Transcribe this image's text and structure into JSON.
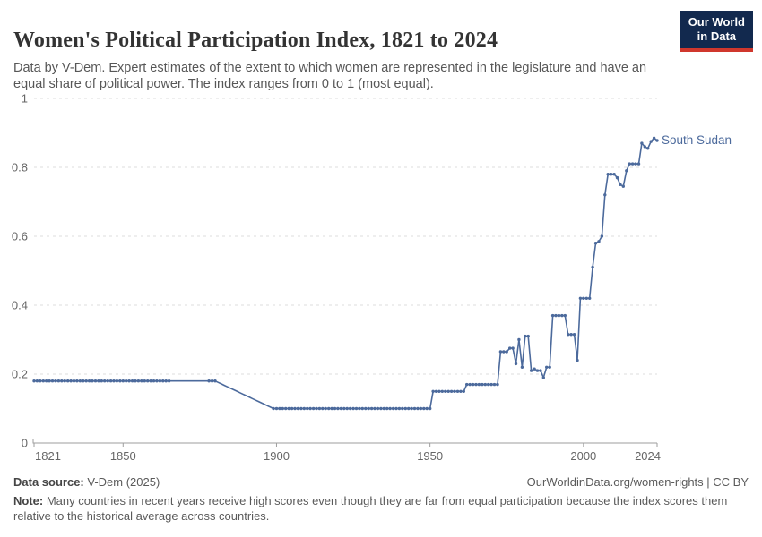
{
  "header": {
    "title": "Women's Political Participation Index, 1821 to 2024",
    "subtitle": "Data by V-Dem. Expert estimates of the extent to which women are represented in the legislature and have an equal share of political power. The index ranges from 0 to 1 (most equal)."
  },
  "logo": {
    "line1": "Our World",
    "line2": "in Data",
    "bg_color": "#12294e",
    "bar_color": "#d0372d"
  },
  "footer": {
    "source_label": "Data source:",
    "source_value": " V-Dem (2025)",
    "link": "OurWorldinData.org/women-rights | CC BY",
    "note_label": "Note:",
    "note_value": " Many countries in recent years receive high scores even though they are far from equal participation because the index scores them relative to the historical average across countries."
  },
  "chart_data": {
    "type": "line",
    "title": "Women's Political Participation Index, 1821 to 2024",
    "entity": "South Sudan",
    "series_label": "South Sudan",
    "xlim": [
      1821,
      2024
    ],
    "ylim": [
      0,
      1
    ],
    "xticks": [
      1821,
      1850,
      1900,
      1950,
      2000,
      2024
    ],
    "yticks": [
      0,
      0.2,
      0.4,
      0.6,
      0.8,
      1
    ],
    "ytick_labels": [
      "0",
      "0.2",
      "0.4",
      "0.6",
      "0.8",
      "1"
    ],
    "grid": "horizontal-dashed",
    "legend_position": "end-of-line-label",
    "colors": {
      "line": "#4c6a9c",
      "grid": "#dcdcdc",
      "axis": "#9e9e9e",
      "tick_label": "#666666"
    },
    "runs_comment": "constant-value year runs: [startYear, endYear, value, hasMarkers]; null value = linear ramp between neighbouring runs (no markers)",
    "runs": [
      [
        1821,
        1865,
        0.18,
        true
      ],
      [
        1866,
        1877,
        0.18,
        false
      ],
      [
        1878,
        1880,
        0.18,
        true
      ],
      [
        1881,
        1898,
        null,
        false
      ],
      [
        1899,
        1950,
        0.1,
        true
      ],
      [
        1951,
        1961,
        0.15,
        true
      ],
      [
        1962,
        1972,
        0.17,
        true
      ]
    ],
    "points": [
      [
        1973,
        0.265
      ],
      [
        1974,
        0.265
      ],
      [
        1975,
        0.265
      ],
      [
        1976,
        0.275
      ],
      [
        1977,
        0.275
      ],
      [
        1978,
        0.23
      ],
      [
        1979,
        0.3
      ],
      [
        1980,
        0.22
      ],
      [
        1981,
        0.31
      ],
      [
        1982,
        0.31
      ],
      [
        1983,
        0.21
      ],
      [
        1984,
        0.215
      ],
      [
        1985,
        0.21
      ],
      [
        1986,
        0.21
      ],
      [
        1987,
        0.19
      ],
      [
        1988,
        0.22
      ],
      [
        1989,
        0.22
      ],
      [
        1990,
        0.37
      ],
      [
        1991,
        0.37
      ],
      [
        1992,
        0.37
      ],
      [
        1993,
        0.37
      ],
      [
        1994,
        0.37
      ],
      [
        1995,
        0.315
      ],
      [
        1996,
        0.315
      ],
      [
        1997,
        0.315
      ],
      [
        1998,
        0.24
      ],
      [
        1999,
        0.42
      ],
      [
        2000,
        0.42
      ],
      [
        2001,
        0.42
      ],
      [
        2002,
        0.42
      ],
      [
        2003,
        0.51
      ],
      [
        2004,
        0.58
      ],
      [
        2005,
        0.585
      ],
      [
        2006,
        0.6
      ],
      [
        2007,
        0.72
      ],
      [
        2008,
        0.78
      ],
      [
        2009,
        0.78
      ],
      [
        2010,
        0.78
      ],
      [
        2011,
        0.77
      ],
      [
        2012,
        0.75
      ],
      [
        2013,
        0.745
      ],
      [
        2014,
        0.79
      ],
      [
        2015,
        0.81
      ],
      [
        2016,
        0.81
      ],
      [
        2017,
        0.81
      ],
      [
        2018,
        0.81
      ],
      [
        2019,
        0.87
      ],
      [
        2020,
        0.86
      ],
      [
        2021,
        0.855
      ],
      [
        2022,
        0.875
      ],
      [
        2023,
        0.885
      ],
      [
        2024,
        0.878
      ]
    ]
  }
}
